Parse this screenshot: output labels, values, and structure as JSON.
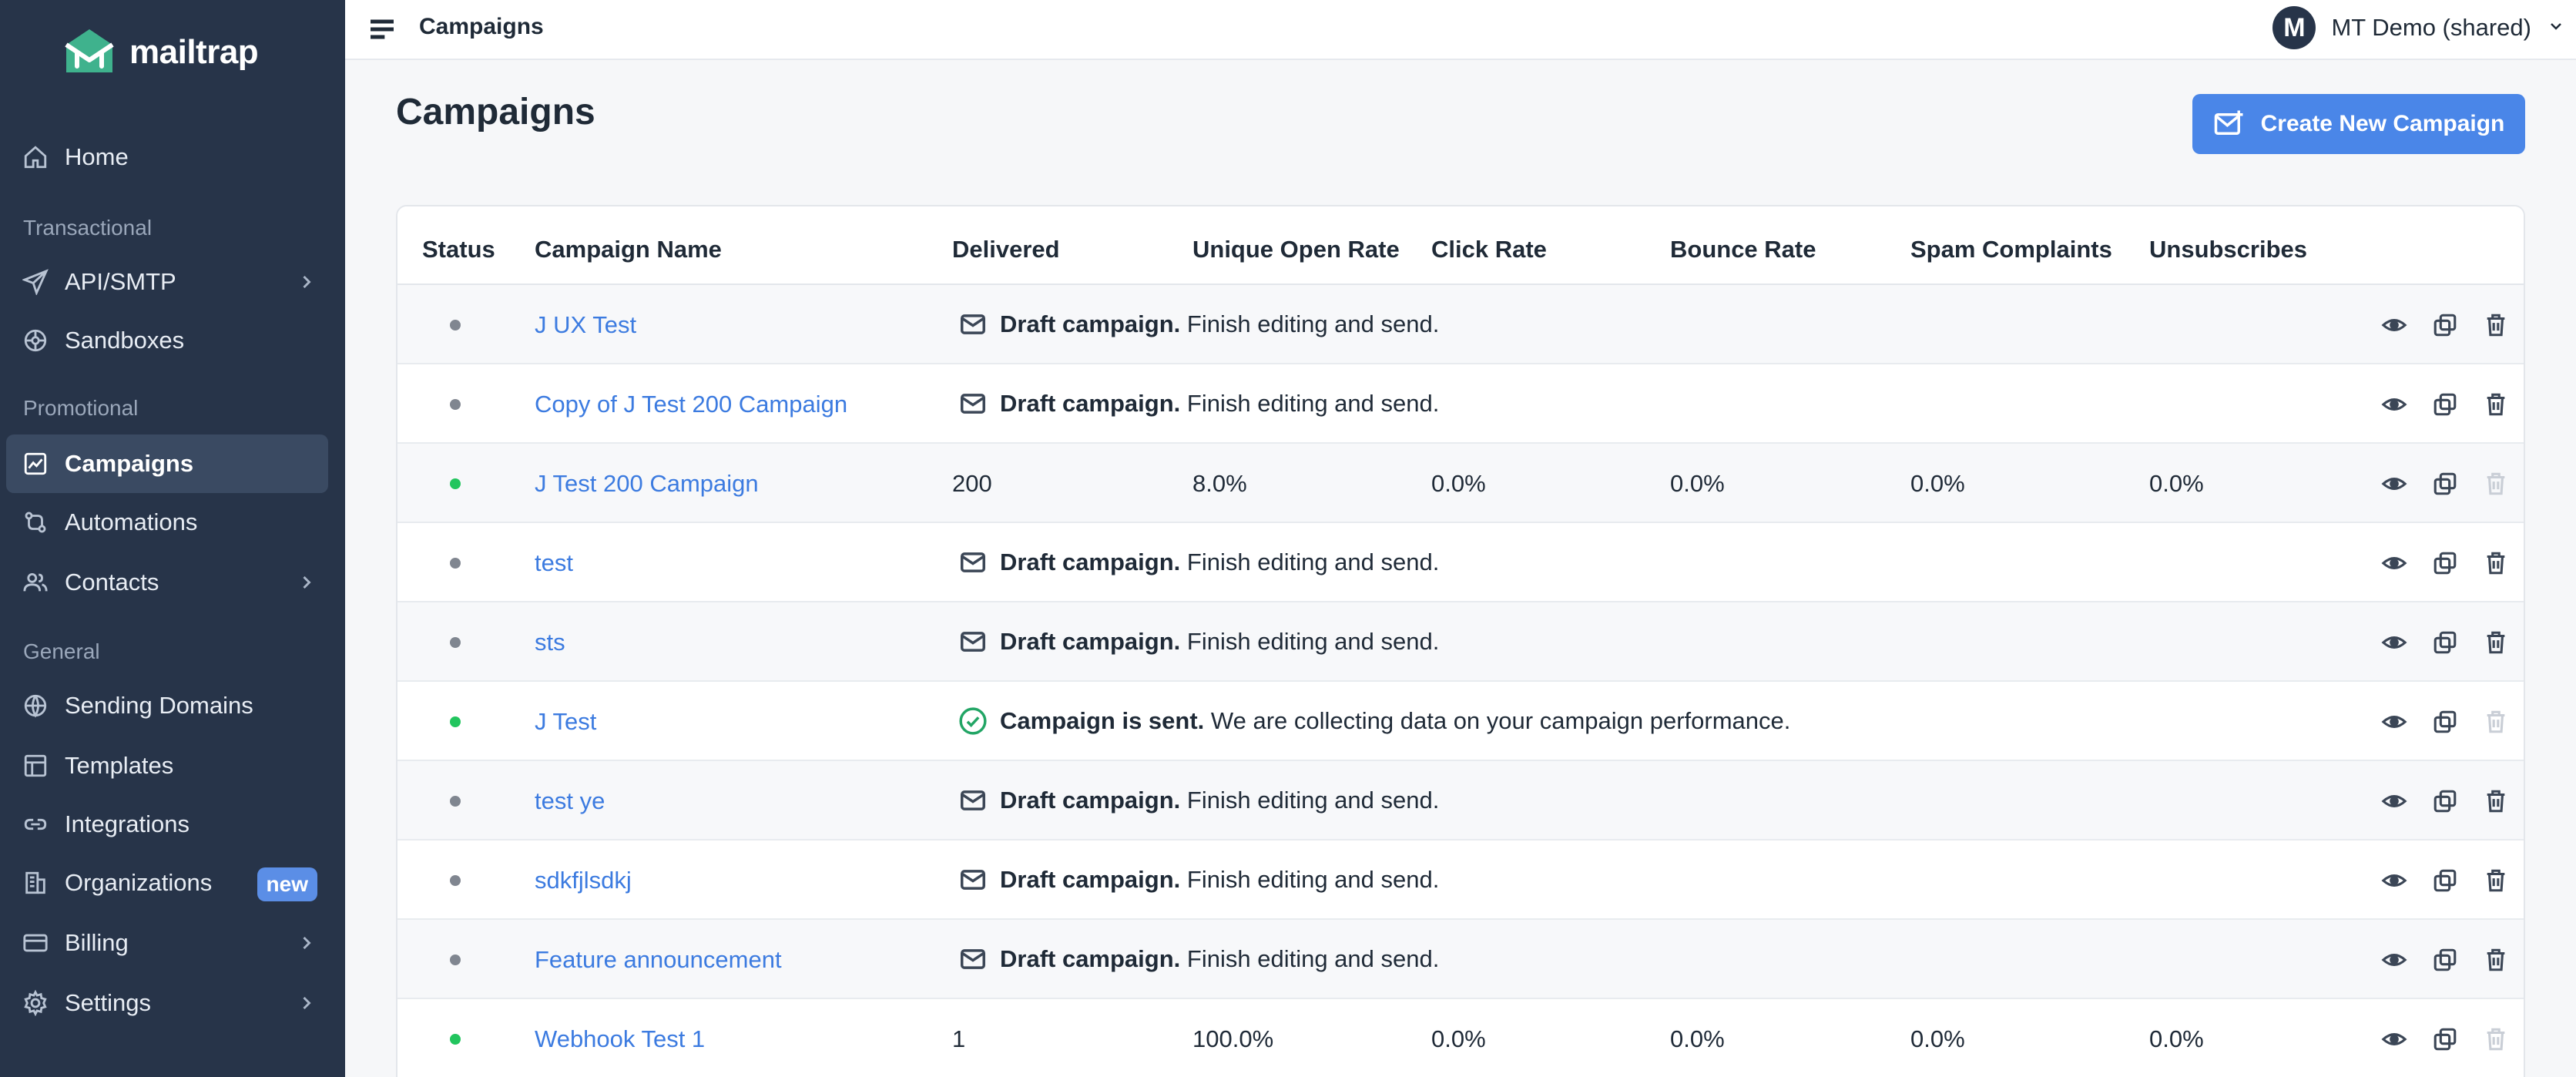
{
  "brand": {
    "name": "mailtrap",
    "accent": "#3fb28d"
  },
  "sidebar": {
    "items": [
      {
        "key": "home",
        "label": "Home",
        "icon": "home-icon"
      },
      {
        "key": "api",
        "label": "API/SMTP",
        "icon": "send-icon",
        "chevron": true
      },
      {
        "key": "sandboxes",
        "label": "Sandboxes",
        "icon": "sandbox-icon"
      },
      {
        "key": "campaigns",
        "label": "Campaigns",
        "icon": "chart-icon",
        "active": true
      },
      {
        "key": "automations",
        "label": "Automations",
        "icon": "automation-icon"
      },
      {
        "key": "contacts",
        "label": "Contacts",
        "icon": "contacts-icon",
        "chevron": true
      },
      {
        "key": "domains",
        "label": "Sending Domains",
        "icon": "globe-icon"
      },
      {
        "key": "templates",
        "label": "Templates",
        "icon": "template-icon"
      },
      {
        "key": "integrations",
        "label": "Integrations",
        "icon": "link-icon"
      },
      {
        "key": "organizations",
        "label": "Organizations",
        "icon": "building-icon",
        "badge": "new"
      },
      {
        "key": "billing",
        "label": "Billing",
        "icon": "card-icon",
        "chevron": true
      },
      {
        "key": "settings",
        "label": "Settings",
        "icon": "gear-icon",
        "chevron": true
      }
    ],
    "sections": {
      "transactional": "Transactional",
      "promotional": "Promotional",
      "general": "General"
    }
  },
  "topbar": {
    "title": "Campaigns",
    "account_initial": "M",
    "account_name": "MT Demo (shared)"
  },
  "main": {
    "title": "Campaigns",
    "create_button": "Create New Campaign"
  },
  "table": {
    "headers": {
      "status": "Status",
      "name": "Campaign Name",
      "delivered": "Delivered",
      "open": "Unique Open Rate",
      "click": "Click Rate",
      "bounce": "Bounce Rate",
      "spam": "Spam Complaints",
      "unsub": "Unsubscribes"
    },
    "draft_bold": "Draft campaign.",
    "draft_rest": "Finish editing and send.",
    "sent_bold": "Campaign is sent.",
    "sent_rest": "We are collecting data on your campaign performance.",
    "rows": [
      {
        "name": "J UX Test",
        "status": "draft"
      },
      {
        "name": "Copy of J Test 200 Campaign",
        "status": "draft"
      },
      {
        "name": "J Test 200 Campaign",
        "status": "stats",
        "delivered": "200",
        "open": "8.0%",
        "click": "0.0%",
        "bounce": "0.0%",
        "spam": "0.0%",
        "unsub": "0.0%"
      },
      {
        "name": "test",
        "status": "draft"
      },
      {
        "name": "sts",
        "status": "draft"
      },
      {
        "name": "J Test",
        "status": "sent"
      },
      {
        "name": "test ye",
        "status": "draft"
      },
      {
        "name": "sdkfjlsdkj",
        "status": "draft"
      },
      {
        "name": "Feature announcement",
        "status": "draft"
      },
      {
        "name": "Webhook Test 1",
        "status": "stats",
        "delivered": "1",
        "open": "100.0%",
        "click": "0.0%",
        "bounce": "0.0%",
        "spam": "0.0%",
        "unsub": "0.0%"
      }
    ]
  },
  "colors": {
    "dot_grey": "#808690",
    "dot_green": "#22c55e",
    "sent_check": "#22a565"
  }
}
